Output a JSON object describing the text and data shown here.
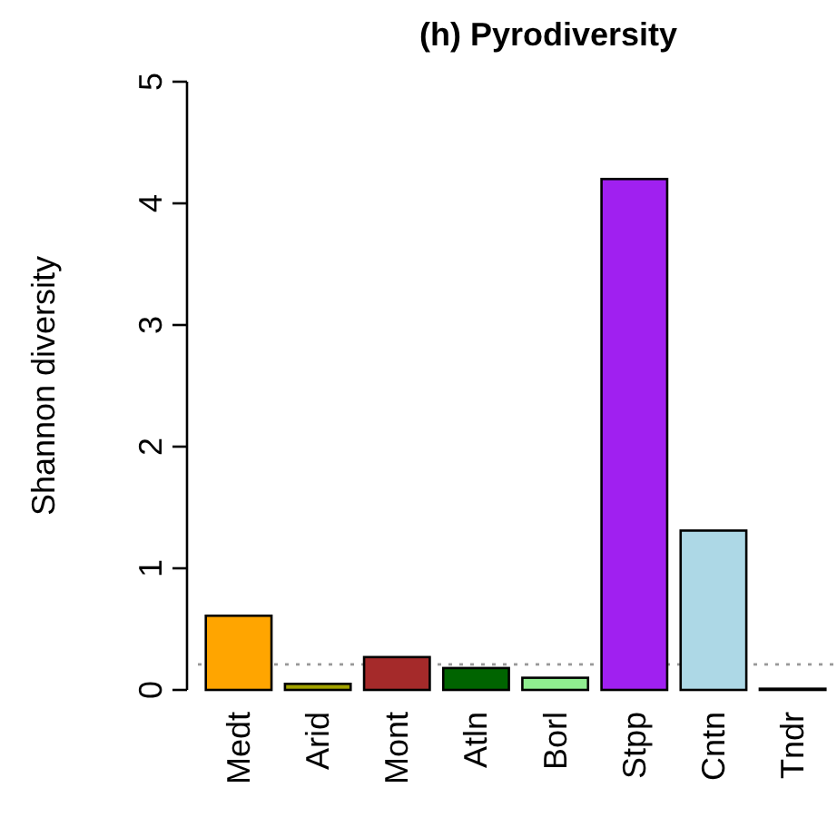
{
  "chart_data": {
    "type": "bar",
    "title": "(h) Pyrodiversity",
    "ylabel": "Shannon diversity",
    "categories": [
      "Medt",
      "Arid",
      "Mont",
      "Atln",
      "Borl",
      "Stpp",
      "Cntn",
      "Tndr"
    ],
    "values": [
      0.61,
      0.05,
      0.27,
      0.18,
      0.1,
      4.2,
      1.31,
      0.01
    ],
    "colors": [
      "#ffa500",
      "#a3a300",
      "#a52a2a",
      "#006400",
      "#90ee90",
      "#a020f0",
      "#add8e6",
      "#000000"
    ],
    "ylim": [
      0,
      5
    ],
    "yticks": [
      0,
      1,
      2,
      3,
      4,
      5
    ],
    "grid": false,
    "ref_lines": [
      {
        "axis": "y",
        "value": 0.21,
        "color": "#999999",
        "line_style": "dotted"
      }
    ]
  }
}
